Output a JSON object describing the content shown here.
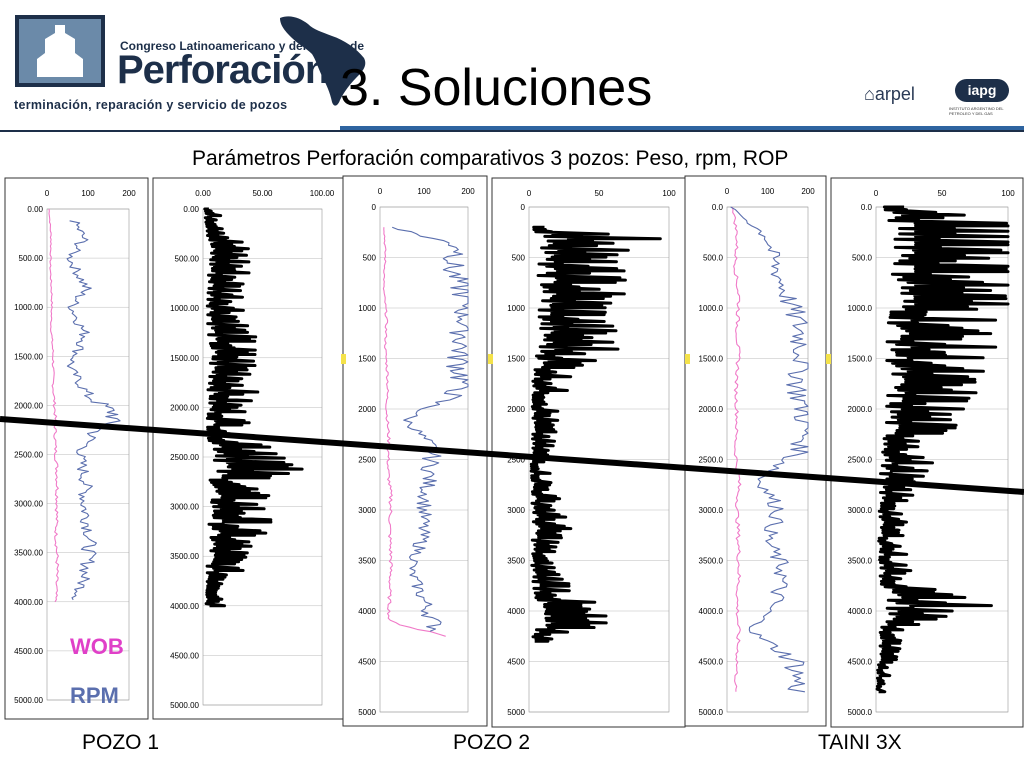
{
  "header": {
    "logo_line1": "Congreso Latinoamericano y del Caribe de",
    "logo_line2": "Perforación",
    "logo_line3": "terminación, reparación y servicio de pozos",
    "title": "3. Soluciones",
    "arpel": "arpel",
    "iapg": "iapg",
    "iapg_sub": "INSTITUTO ARGENTINO DEL PETROLEO Y DEL GAS",
    "subtitle": "Parámetros Perforación comparativos 3 pozos: Peso, rpm, ROP"
  },
  "legend": {
    "wob": "WOB",
    "rpm": "RPM"
  },
  "wells": [
    "POZO 1",
    "POZO 2",
    "TAINI 3X"
  ],
  "colors": {
    "wob": "#f07ac8",
    "rpm": "#5b6fae",
    "rop": "#000000",
    "title_rule": "#2e64a0"
  },
  "chart_data": [
    {
      "type": "line",
      "well": "POZO 1",
      "param": "WOB/RPM",
      "x_ticks": [
        "0",
        "100",
        "200"
      ],
      "xlim": [
        0,
        200
      ],
      "y_ticks": [
        "0.00",
        "500.00",
        "1000.00",
        "1500.00",
        "2000.00",
        "2500.00",
        "3000.00",
        "3500.00",
        "4000.00",
        "4500.00",
        "5000.00"
      ],
      "ylim": [
        0,
        5000
      ],
      "series": [
        {
          "name": "WOB",
          "depth": [
            0,
            300,
            600,
            900,
            1200,
            1500,
            1800,
            2100,
            2400,
            2700,
            3000,
            3300,
            3600,
            3900,
            4000
          ],
          "values": [
            5,
            10,
            8,
            12,
            10,
            15,
            15,
            20,
            20,
            25,
            25,
            22,
            25,
            22,
            20
          ]
        },
        {
          "name": "RPM",
          "depth": [
            120,
            300,
            500,
            800,
            1000,
            1300,
            1600,
            1900,
            2100,
            2300,
            2500,
            2800,
            3000,
            3300,
            3600,
            3900,
            3980
          ],
          "values": [
            65,
            90,
            55,
            95,
            60,
            95,
            55,
            100,
            170,
            110,
            80,
            95,
            90,
            105,
            100,
            80,
            70
          ]
        }
      ]
    },
    {
      "type": "line",
      "well": "POZO 1",
      "param": "ROP",
      "x_ticks": [
        "0.00",
        "50.00",
        "100.00"
      ],
      "xlim": [
        0,
        100
      ],
      "y_ticks": [
        "0.00",
        "500.00",
        "1000.00",
        "1500.00",
        "2000.00",
        "2500.00",
        "3000.00",
        "3500.00",
        "4000.00",
        "4500.00",
        "5000.00"
      ],
      "ylim": [
        0,
        5000
      ],
      "series": [
        {
          "name": "ROP",
          "depth": [
            0,
            200,
            500,
            800,
            1100,
            1400,
            1700,
            2000,
            2300,
            2500,
            2800,
            3100,
            3400,
            3700,
            4000
          ],
          "values": [
            5,
            20,
            30,
            25,
            28,
            30,
            35,
            25,
            30,
            70,
            35,
            40,
            30,
            20,
            15
          ]
        }
      ]
    },
    {
      "type": "line",
      "well": "POZO 2",
      "param": "WOB/RPM",
      "x_ticks": [
        "0",
        "100",
        "200"
      ],
      "xlim": [
        0,
        200
      ],
      "y_ticks": [
        "0",
        "500",
        "1000",
        "1500",
        "2000",
        "2500",
        "3000",
        "3500",
        "4000",
        "4500",
        "5000"
      ],
      "ylim": [
        0,
        5000
      ],
      "series": [
        {
          "name": "WOB",
          "depth": [
            200,
            500,
            800,
            1100,
            1400,
            1700,
            2000,
            2300,
            2600,
            2900,
            3200,
            3500,
            3800,
            4100,
            4250
          ],
          "values": [
            10,
            12,
            8,
            15,
            12,
            18,
            15,
            20,
            18,
            25,
            22,
            25,
            22,
            20,
            150
          ]
        },
        {
          "name": "RPM",
          "depth": [
            200,
            400,
            600,
            900,
            1200,
            1500,
            1800,
            2100,
            2400,
            2700,
            3000,
            3300,
            3600,
            3900,
            4200
          ],
          "values": [
            30,
            190,
            160,
            200,
            195,
            180,
            190,
            60,
            120,
            110,
            100,
            95,
            70,
            100,
            130
          ]
        }
      ]
    },
    {
      "type": "line",
      "well": "POZO 2",
      "param": "ROP",
      "x_ticks": [
        "0",
        "50",
        "100"
      ],
      "xlim": [
        0,
        100
      ],
      "y_ticks": [
        "0",
        "500",
        "1000",
        "1500",
        "2000",
        "2500",
        "3000",
        "3500",
        "4000",
        "4500",
        "5000"
      ],
      "ylim": [
        0,
        5000
      ],
      "series": [
        {
          "name": "ROP",
          "depth": [
            200,
            350,
            500,
            800,
            1100,
            1400,
            1700,
            2000,
            2300,
            2600,
            2900,
            3200,
            3500,
            3800,
            4100,
            4300
          ],
          "values": [
            10,
            80,
            40,
            50,
            40,
            45,
            20,
            15,
            12,
            10,
            15,
            20,
            10,
            25,
            40,
            10
          ]
        }
      ]
    },
    {
      "type": "line",
      "well": "TAINI 3X",
      "param": "WOB/RPM",
      "x_ticks": [
        "0",
        "100",
        "200"
      ],
      "xlim": [
        0,
        200
      ],
      "y_ticks": [
        "0.0",
        "500.0",
        "1000.0",
        "1500.0",
        "2000.0",
        "2500.0",
        "3000.0",
        "3500.0",
        "4000.0",
        "4500.0",
        "5000.0"
      ],
      "ylim": [
        0,
        5000
      ],
      "series": [
        {
          "name": "WOB",
          "depth": [
            0,
            300,
            600,
            900,
            1200,
            1500,
            1800,
            2100,
            2400,
            2700,
            3000,
            3300,
            3600,
            3900,
            4200,
            4500,
            4800
          ],
          "values": [
            15,
            25,
            20,
            30,
            25,
            28,
            22,
            25,
            20,
            30,
            25,
            28,
            30,
            25,
            28,
            25,
            20
          ]
        },
        {
          "name": "RPM",
          "depth": [
            0,
            300,
            600,
            900,
            1200,
            1500,
            1800,
            2100,
            2400,
            2700,
            3000,
            3300,
            3600,
            3900,
            4200,
            4500,
            4800
          ],
          "values": [
            10,
            100,
            120,
            150,
            180,
            190,
            175,
            195,
            190,
            80,
            130,
            100,
            140,
            120,
            60,
            170,
            175
          ]
        }
      ]
    },
    {
      "type": "line",
      "well": "TAINI 3X",
      "param": "ROP",
      "x_ticks": [
        "0",
        "50",
        "100"
      ],
      "xlim": [
        0,
        100
      ],
      "y_ticks": [
        "0.0",
        "500.0",
        "1000.0",
        "1500.0",
        "2000.0",
        "2500.0",
        "3000.0",
        "3500.0",
        "4000.0",
        "4500.0",
        "5000.0"
      ],
      "ylim": [
        0,
        5000
      ],
      "series": [
        {
          "name": "ROP",
          "depth": [
            0,
            250,
            350,
            500,
            700,
            1000,
            1300,
            1600,
            1900,
            2200,
            2500,
            2800,
            3100,
            3400,
            3700,
            3950,
            4200,
            4500,
            4800
          ],
          "values": [
            20,
            95,
            100,
            90,
            85,
            70,
            60,
            55,
            50,
            40,
            30,
            20,
            15,
            15,
            20,
            60,
            15,
            10,
            5
          ]
        }
      ]
    }
  ]
}
